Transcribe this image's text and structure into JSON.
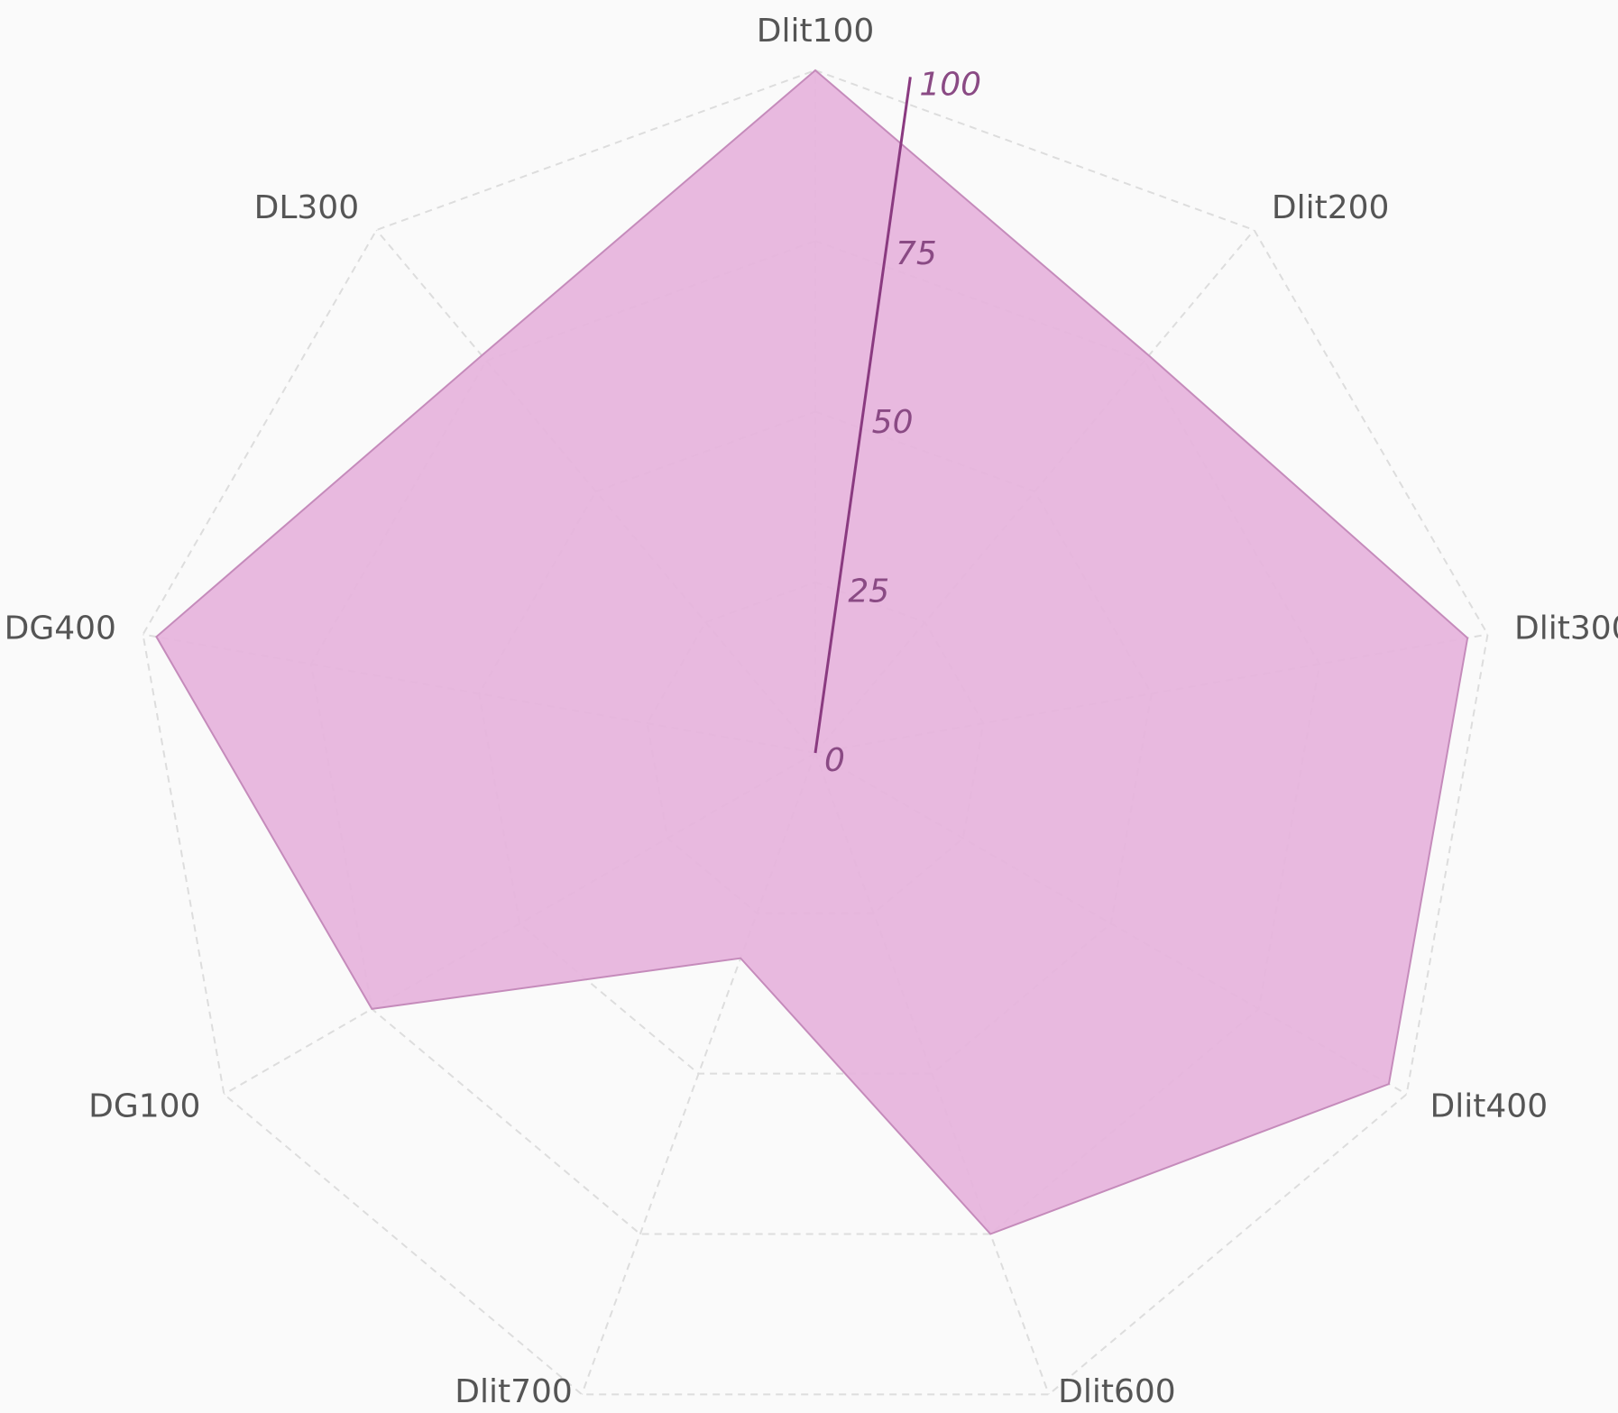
{
  "chart_data": {
    "type": "radar",
    "categories": [
      "Dlit100",
      "Dlit200",
      "Dlit300",
      "Dlit400",
      "Dlit600",
      "Dlit700",
      "DG100",
      "DG400",
      "DL300"
    ],
    "values": [
      100,
      76,
      97,
      97,
      75,
      32,
      75,
      98,
      76
    ],
    "color": "#e6b3dc",
    "rlim": [
      0,
      100
    ],
    "rticks": [
      0,
      25,
      50,
      75,
      100
    ],
    "grid": true
  }
}
